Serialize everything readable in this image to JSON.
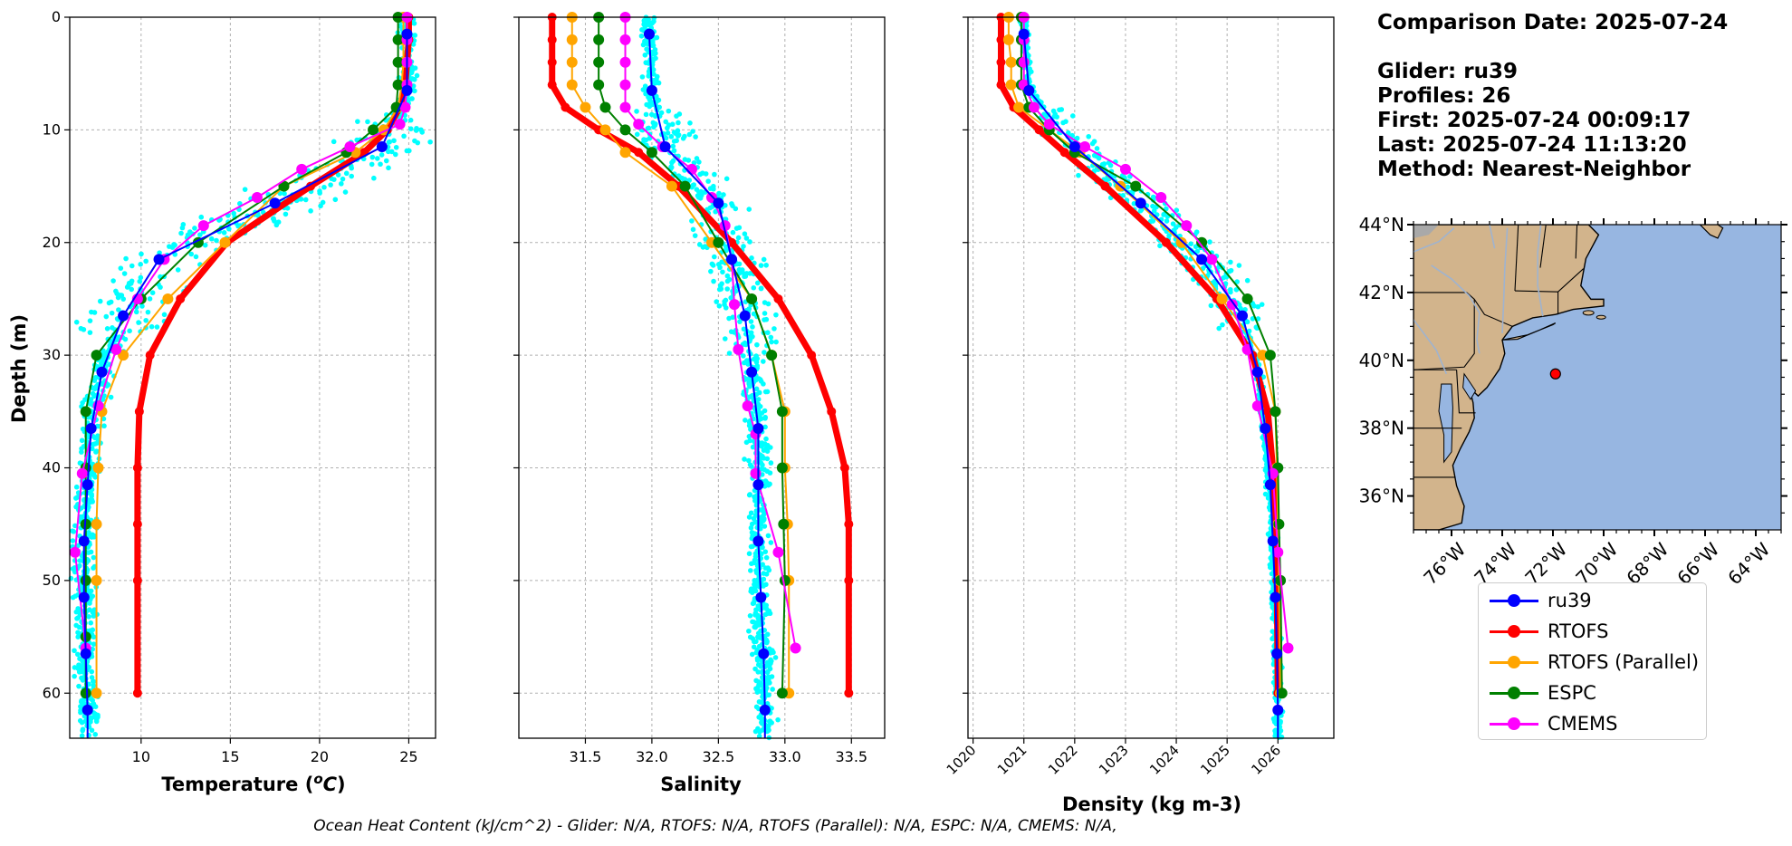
{
  "info": {
    "date_line": "Comparison Date: 2025-07-24",
    "glider_line": "Glider: ru39",
    "profiles_line": "Profiles: 26",
    "first_line": "First: 2025-07-24 00:09:17",
    "last_line": "Last: 2025-07-24 11:13:20",
    "method_line": "Method: Nearest-Neighbor"
  },
  "footnote": "Ocean Heat Content (kJ/cm^2) - Glider: N/A,  RTOFS: N/A,  RTOFS (Parallel): N/A,  ESPC: N/A,  CMEMS: N/A,",
  "legend": [
    {
      "label": "ru39",
      "color": "#0000ff"
    },
    {
      "label": "RTOFS",
      "color": "#ff0000"
    },
    {
      "label": "RTOFS (Parallel)",
      "color": "#ffa500"
    },
    {
      "label": "ESPC",
      "color": "#008000"
    },
    {
      "label": "CMEMS",
      "color": "#ff00ff"
    }
  ],
  "colors": {
    "scatter": "#00ffff",
    "ru39": "#0000ff",
    "RTOFS": "#ff0000",
    "RTOFS (Parallel)": "#ffa500",
    "ESPC": "#008000",
    "CMEMS": "#ff00ff",
    "ocean": "#97b6e1",
    "land": "#d2b48c",
    "grid": "#b0b0b0"
  },
  "chart_data": [
    {
      "type": "line",
      "xlabel": "Temperature (°C)",
      "ylabel": "Depth (m)",
      "xlim": [
        6,
        26.5
      ],
      "ylim": [
        64,
        0
      ],
      "xticks": [
        10,
        15,
        20,
        25
      ],
      "yticks": [
        0,
        10,
        20,
        30,
        40,
        50,
        60
      ],
      "grid": true,
      "y_inverted": true,
      "scatter_cloud": "glider profiles (cyan)",
      "series": [
        {
          "name": "ru39",
          "depth": [
            1.5,
            6.5,
            11.5,
            16.5,
            21.5,
            26.5,
            31.5,
            36.5,
            41.5,
            46.5,
            51.5,
            56.5,
            61.5,
            64
          ],
          "values": [
            24.9,
            24.9,
            23.5,
            17.5,
            11.0,
            9.0,
            7.8,
            7.2,
            7.0,
            6.8,
            6.8,
            6.9,
            7.0,
            7.0
          ]
        },
        {
          "name": "RTOFS",
          "depth": [
            0,
            2,
            4,
            6,
            8,
            10,
            12,
            15,
            20,
            25,
            30,
            35,
            40,
            45,
            50,
            60
          ],
          "values": [
            25.0,
            25.0,
            24.9,
            24.8,
            24.5,
            23.8,
            22.5,
            19.5,
            14.8,
            12.2,
            10.5,
            9.9,
            9.8,
            9.8,
            9.8,
            9.8
          ]
        },
        {
          "name": "RTOFS (Parallel)",
          "depth": [
            0,
            2,
            4,
            6,
            8,
            10,
            12,
            15,
            20,
            25,
            30,
            35,
            40,
            45,
            50,
            60
          ],
          "values": [
            24.7,
            24.7,
            24.7,
            24.6,
            24.4,
            23.6,
            22.0,
            18.0,
            14.7,
            11.5,
            9.0,
            7.8,
            7.6,
            7.5,
            7.5,
            7.5
          ]
        },
        {
          "name": "ESPC",
          "depth": [
            0,
            2,
            4,
            6,
            8,
            10,
            12,
            15,
            20,
            25,
            30,
            35,
            40,
            45,
            50,
            55,
            60
          ],
          "values": [
            24.4,
            24.4,
            24.4,
            24.4,
            24.3,
            23.0,
            21.5,
            18.0,
            13.2,
            10.0,
            7.5,
            6.9,
            6.9,
            6.9,
            6.9,
            6.9,
            6.9
          ]
        },
        {
          "name": "CMEMS",
          "depth": [
            0,
            2,
            4,
            6,
            8,
            9.5,
            11.5,
            13.5,
            16,
            18.5,
            21.5,
            25,
            29.5,
            34.5,
            40.5,
            47.5,
            56
          ],
          "values": [
            24.9,
            24.9,
            24.9,
            24.9,
            24.8,
            24.5,
            21.7,
            19.0,
            16.5,
            13.5,
            11.3,
            9.8,
            8.6,
            7.6,
            6.7,
            6.3,
            6.9
          ]
        }
      ]
    },
    {
      "type": "line",
      "xlabel": "Salinity",
      "xlim": [
        31.0,
        33.75
      ],
      "ylim": [
        64,
        0
      ],
      "xticks": [
        31.5,
        32.0,
        32.5,
        33.0,
        33.5
      ],
      "grid": true,
      "y_inverted": true,
      "series": [
        {
          "name": "ru39",
          "depth": [
            1.5,
            6.5,
            11.5,
            16.5,
            21.5,
            26.5,
            31.5,
            36.5,
            41.5,
            46.5,
            51.5,
            56.5,
            61.5,
            64
          ],
          "values": [
            31.98,
            32.0,
            32.1,
            32.5,
            32.6,
            32.7,
            32.75,
            32.8,
            32.8,
            32.8,
            32.82,
            32.84,
            32.85,
            32.85
          ]
        },
        {
          "name": "RTOFS",
          "depth": [
            0,
            2,
            4,
            6,
            8,
            10,
            12,
            15,
            20,
            25,
            30,
            35,
            40,
            45,
            50,
            60
          ],
          "values": [
            31.25,
            31.25,
            31.25,
            31.25,
            31.35,
            31.6,
            31.9,
            32.2,
            32.6,
            32.95,
            33.2,
            33.35,
            33.45,
            33.48,
            33.48,
            33.48
          ]
        },
        {
          "name": "RTOFS (Parallel)",
          "depth": [
            0,
            2,
            4,
            6,
            8,
            10,
            12,
            15,
            20,
            25,
            30,
            35,
            40,
            45,
            50,
            60
          ],
          "values": [
            31.4,
            31.4,
            31.4,
            31.4,
            31.5,
            31.65,
            31.8,
            32.15,
            32.45,
            32.75,
            32.9,
            33.0,
            33.0,
            33.02,
            33.03,
            33.03
          ]
        },
        {
          "name": "ESPC",
          "depth": [
            0,
            2,
            4,
            6,
            8,
            10,
            12,
            15,
            20,
            25,
            30,
            35,
            40,
            45,
            50,
            60
          ],
          "values": [
            31.6,
            31.6,
            31.6,
            31.6,
            31.65,
            31.8,
            32.0,
            32.25,
            32.5,
            32.75,
            32.9,
            32.98,
            32.98,
            32.99,
            33.0,
            32.98
          ]
        },
        {
          "name": "CMEMS",
          "depth": [
            0,
            2,
            4,
            6,
            8,
            9.5,
            11.5,
            13.5,
            16,
            18.5,
            21.5,
            25.5,
            29.5,
            34.5,
            37,
            40.5,
            47.5,
            56
          ],
          "values": [
            31.8,
            31.8,
            31.8,
            31.8,
            31.8,
            31.9,
            32.08,
            32.3,
            32.45,
            32.55,
            32.6,
            32.62,
            32.65,
            32.72,
            32.78,
            32.78,
            32.95,
            33.08
          ]
        }
      ]
    },
    {
      "type": "line",
      "xlabel": "Density (kg m-3)",
      "xlim": [
        1019.9,
        1027.1
      ],
      "ylim": [
        64,
        0
      ],
      "xticks": [
        1020,
        1021,
        1022,
        1023,
        1024,
        1025,
        1026
      ],
      "grid": true,
      "y_inverted": true,
      "series": [
        {
          "name": "ru39",
          "depth": [
            1.5,
            6.5,
            11.5,
            16.5,
            21.5,
            26.5,
            31.5,
            36.5,
            41.5,
            46.5,
            51.5,
            56.5,
            61.5,
            64
          ],
          "values": [
            1021.0,
            1021.1,
            1022.0,
            1023.3,
            1024.5,
            1025.3,
            1025.6,
            1025.75,
            1025.85,
            1025.9,
            1025.95,
            1025.98,
            1026.0,
            1026.0
          ]
        },
        {
          "name": "RTOFS",
          "depth": [
            0,
            2,
            4,
            6,
            8,
            10,
            12,
            15,
            20,
            25,
            30,
            35,
            40,
            45,
            50,
            60
          ],
          "values": [
            1020.55,
            1020.55,
            1020.55,
            1020.55,
            1020.8,
            1021.3,
            1021.8,
            1022.6,
            1023.8,
            1024.8,
            1025.5,
            1025.8,
            1025.9,
            1025.95,
            1025.98,
            1026.0
          ]
        },
        {
          "name": "RTOFS (Parallel)",
          "depth": [
            0,
            2,
            4,
            6,
            8,
            10,
            12,
            15,
            20,
            25,
            30,
            35,
            40,
            45,
            50,
            60
          ],
          "values": [
            1020.7,
            1020.7,
            1020.75,
            1020.75,
            1020.9,
            1021.5,
            1022.1,
            1022.9,
            1024.1,
            1024.9,
            1025.7,
            1025.95,
            1025.98,
            1026.0,
            1026.02,
            1026.05
          ]
        },
        {
          "name": "ESPC",
          "depth": [
            0,
            2,
            4,
            6,
            8,
            10,
            12,
            15,
            20,
            25,
            30,
            35,
            40,
            45,
            50,
            60
          ],
          "values": [
            1020.95,
            1020.95,
            1020.95,
            1020.95,
            1021.1,
            1021.5,
            1022.0,
            1023.2,
            1024.5,
            1025.4,
            1025.85,
            1025.95,
            1026.0,
            1026.02,
            1026.05,
            1026.08
          ]
        },
        {
          "name": "CMEMS",
          "depth": [
            0,
            2,
            4,
            6,
            8,
            9.5,
            11.5,
            13.5,
            16,
            18.5,
            21.5,
            25.5,
            29.5,
            34.5,
            40.5,
            47.5,
            56
          ],
          "values": [
            1021.0,
            1021.0,
            1021.0,
            1021.0,
            1021.2,
            1021.5,
            1022.2,
            1023.0,
            1023.7,
            1024.2,
            1024.7,
            1025.1,
            1025.4,
            1025.6,
            1025.9,
            1026.0,
            1026.2
          ]
        }
      ]
    },
    {
      "type": "map",
      "xlim": [
        -77.5,
        -63
      ],
      "ylim": [
        35,
        44
      ],
      "lon_ticks": [
        "76°W",
        "74°W",
        "72°W",
        "70°W",
        "68°W",
        "66°W",
        "64°W"
      ],
      "lat_ticks": [
        "36°N",
        "38°N",
        "40°N",
        "42°N",
        "44°N"
      ],
      "glider_position": {
        "lon": -71.9,
        "lat": 39.6
      }
    }
  ]
}
